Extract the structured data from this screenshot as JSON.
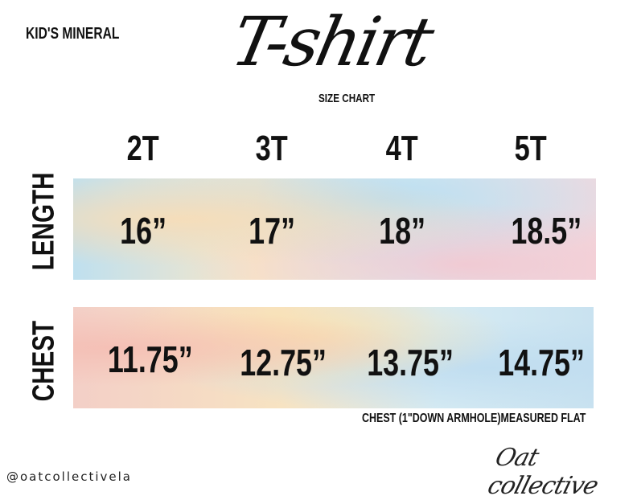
{
  "brand": "KID'S MINERAL",
  "title": "T-shirt",
  "subtitle": "SIZE CHART",
  "sizes": [
    "2T",
    "3T",
    "4T",
    "5T"
  ],
  "rows": {
    "length": {
      "label": "LENGTH",
      "values": [
        "16”",
        "17”",
        "18”",
        "18.5”"
      ]
    },
    "chest": {
      "label": "CHEST",
      "values": [
        "11.75”",
        "12.75”",
        "13.75”",
        "14.75”"
      ]
    }
  },
  "note": "CHEST (1\"DOWN ARMHOLE)MEASURED FLAT",
  "logo": "Oat collective",
  "handle": "@oatcollectivela"
}
